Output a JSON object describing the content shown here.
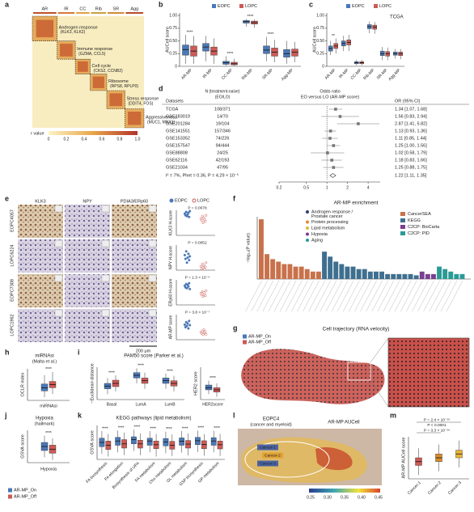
{
  "panel_labels": [
    "a",
    "b",
    "c",
    "d",
    "e",
    "f",
    "g",
    "h",
    "i",
    "j",
    "k",
    "l",
    "m"
  ],
  "a": {
    "groups": [
      "AR",
      "IR",
      "CC",
      "Rib",
      "SR",
      "Agg"
    ],
    "modules": [
      {
        "name": "Androgen response",
        "genes": "(KLK3, KLK2)"
      },
      {
        "name": "Immune response",
        "genes": "(GZMA, CCL5)"
      },
      {
        "name": "Cell cycle",
        "genes": "(CKS2, CCNB2)"
      },
      {
        "name": "Ribosome",
        "genes": "(RPS8, RPLP0)"
      },
      {
        "name": "Stress response",
        "genes": "(DDIT4, FOS)"
      },
      {
        "name": "Aggressiveness",
        "genes": "(MUC1, MNX1)"
      }
    ],
    "legend_title": "r value",
    "legend_ticks": [
      "0",
      "0.2",
      "0.4",
      "0.6",
      "0.8",
      "1.0"
    ]
  },
  "b": {
    "y_label": "AUCell score",
    "ylim": [
      0,
      1.05
    ],
    "yticks": [
      0,
      {
        "value": 0.25,
        "label": "0.25"
      },
      {
        "value": 0.5,
        "label": "0.50"
      },
      {
        "value": 0.75,
        "label": "0.75"
      },
      {
        "value": 1,
        "label": "1.00"
      }
    ],
    "categories": [
      "AR-MP",
      "IR-MP",
      "CC-MP",
      "Rib-MP",
      "SR-MP",
      "Agg-MP"
    ],
    "significance": [
      "****",
      null,
      "****",
      "****",
      "****",
      null
    ],
    "series": [
      {
        "name": "EOPC",
        "color": "#4a78b8",
        "boxes": [
          [
            0.05,
            0.22,
            0.33,
            0.42,
            0.62
          ],
          [
            0.1,
            0.3,
            0.38,
            0.45,
            0.6
          ],
          [
            0.01,
            0.04,
            0.07,
            0.1,
            0.2
          ],
          [
            0.78,
            0.85,
            0.88,
            0.9,
            0.93
          ],
          [
            0.1,
            0.25,
            0.32,
            0.4,
            0.58
          ],
          [
            0.05,
            0.18,
            0.25,
            0.33,
            0.5
          ]
        ]
      },
      {
        "name": "LOPC",
        "color": "#cc5a55",
        "boxes": [
          [
            0.05,
            0.2,
            0.3,
            0.4,
            0.6
          ],
          [
            0.05,
            0.22,
            0.3,
            0.38,
            0.55
          ],
          [
            0.01,
            0.03,
            0.05,
            0.08,
            0.15
          ],
          [
            0.76,
            0.83,
            0.86,
            0.89,
            0.92
          ],
          [
            0.08,
            0.2,
            0.28,
            0.36,
            0.52
          ],
          [
            0.08,
            0.2,
            0.28,
            0.34,
            0.48
          ]
        ]
      }
    ]
  },
  "c": {
    "title": "TCGA",
    "y_label": "AUCell score",
    "ylim": [
      0,
      1.05
    ],
    "yticks": [
      0,
      {
        "value": 0.25,
        "label": "0.25"
      },
      {
        "value": 0.5,
        "label": "0.50"
      },
      {
        "value": 0.75,
        "label": "0.75"
      },
      {
        "value": 1,
        "label": "1.00"
      }
    ],
    "categories": [
      "AR-MP",
      "IR-MP",
      "CC-MP",
      "Rib-MP",
      "SR-MP",
      "Agg-MP"
    ],
    "significance": [
      "**",
      null,
      null,
      null,
      null,
      null
    ],
    "series": [
      {
        "name": "EOPC",
        "color": "#4a78b8",
        "boxes": [
          [
            0.22,
            0.3,
            0.35,
            0.4,
            0.5
          ],
          [
            0.3,
            0.4,
            0.45,
            0.5,
            0.6
          ],
          [
            0.02,
            0.05,
            0.07,
            0.09,
            0.13
          ],
          [
            0.65,
            0.74,
            0.78,
            0.82,
            0.88
          ],
          [
            0.12,
            0.21,
            0.25,
            0.3,
            0.38
          ],
          [
            0.15,
            0.22,
            0.25,
            0.28,
            0.34
          ]
        ]
      },
      {
        "name": "LOPC",
        "color": "#cc5a55",
        "boxes": [
          [
            0.25,
            0.35,
            0.4,
            0.45,
            0.55
          ],
          [
            0.3,
            0.42,
            0.47,
            0.52,
            0.62
          ],
          [
            0.02,
            0.05,
            0.07,
            0.09,
            0.13
          ],
          [
            0.64,
            0.73,
            0.77,
            0.81,
            0.87
          ],
          [
            0.12,
            0.2,
            0.25,
            0.29,
            0.37
          ],
          [
            0.14,
            0.21,
            0.25,
            0.28,
            0.34
          ]
        ]
      }
    ]
  },
  "d": {
    "n_header": [
      "N (treatment-naive)",
      "(EO/LO)"
    ],
    "or_header": [
      "Odds ratio",
      "EO versus LO (AR-MP score)"
    ],
    "dataset_header": "Datasets",
    "ci_header": "OR (95% CI)",
    "xlim": [
      0.2,
      6
    ],
    "xticks": [
      0.2,
      0.5,
      1,
      2,
      4
    ],
    "rows": [
      {
        "dataset": "TCGA",
        "n": "108/371",
        "ci_text": "1.34 [1.07, 1.68]",
        "or": 1.34,
        "lo": 1.07,
        "hi": 1.68
      },
      {
        "dataset": "GSE183019",
        "n": "14/70",
        "ci_text": "1.56 [0.83, 2.94]",
        "or": 1.56,
        "lo": 0.83,
        "hi": 2.94
      },
      {
        "dataset": "GSE201284",
        "n": "19/104",
        "ci_text": "2.87 [1.41, 5.82]",
        "or": 2.87,
        "lo": 1.41,
        "hi": 5.82
      },
      {
        "dataset": "GSE141551",
        "n": "157/346",
        "ci_text": "1.13 [0.93, 1.36]",
        "or": 1.13,
        "lo": 0.93,
        "hi": 1.36
      },
      {
        "dataset": "GSE153352",
        "n": "74/226",
        "ci_text": "1.11 [0.85, 1.44]",
        "or": 1.11,
        "lo": 0.85,
        "hi": 1.44
      },
      {
        "dataset": "GSE157547",
        "n": "94/444",
        "ci_text": "1.25 [1.00, 1.56]",
        "or": 1.25,
        "lo": 1.0,
        "hi": 1.56
      },
      {
        "dataset": "GSE88808",
        "n": "24/25",
        "ci_text": "1.02 [0.58, 1.79]",
        "or": 1.02,
        "lo": 0.58,
        "hi": 1.79
      },
      {
        "dataset": "GSE62116",
        "n": "42/193",
        "ci_text": "1.18 [0.83, 1.66]",
        "or": 1.18,
        "lo": 0.83,
        "hi": 1.66
      },
      {
        "dataset": "GSE21034",
        "n": "47/95",
        "ci_text": "1.25 [0.88, 1.75]",
        "or": 1.25,
        "lo": 0.88,
        "hi": 1.75
      }
    ],
    "summary": {
      "stats": "I² = 7%, Phet = 0.36, P = 4.29 × 10⁻⁵",
      "ci_text": "1.22 [1.11, 1.35]",
      "or": 1.22,
      "lo": 1.11,
      "hi": 1.35
    }
  },
  "e": {
    "columns": [
      "KLK3",
      "NPY",
      "PDIA3/ERp60"
    ],
    "rows": [
      "EOPC4057",
      "LOPC6224",
      "EOPC7308",
      "LOPC1962"
    ],
    "legend": [
      {
        "name": "EOPC",
        "color": "#4a78b8"
      },
      {
        "name": "LOPC",
        "color": "#cc5a55"
      }
    ],
    "scale_bar": "200 μm",
    "plots": [
      {
        "y_label": "KLK3 H-score",
        "p": "P = 0.0078",
        "ylim": [
          0,
          300
        ],
        "eopc": [
          260,
          240,
          280,
          230,
          250,
          270,
          220,
          290
        ],
        "lopc": [
          200,
          180,
          230,
          150,
          210,
          190,
          170,
          240
        ]
      },
      {
        "y_label": "NPY H-score",
        "p": "P = 0.0052",
        "ylim": [
          0,
          200
        ],
        "eopc": [
          120,
          90,
          150,
          60,
          100,
          130,
          80,
          110
        ],
        "lopc": [
          30,
          10,
          50,
          20,
          40,
          5,
          25,
          60
        ]
      },
      {
        "y_label": "ERp60 H-score",
        "p": "P = 1.3 × 10⁻⁴",
        "ylim": [
          0,
          300
        ],
        "eopc": [
          230,
          210,
          250,
          200,
          240,
          220,
          260,
          190
        ],
        "lopc": [
          140,
          120,
          160,
          100,
          150,
          130,
          110,
          170
        ]
      },
      {
        "y_label": "AR-MP score",
        "p": "P = 3.8 × 10⁻⁷",
        "ylim": [
          0,
          1
        ],
        "eopc": [
          0.6,
          0.5,
          0.7,
          0.55,
          0.65,
          0.45,
          0.75,
          0.58
        ],
        "lopc": [
          0.3,
          0.25,
          0.35,
          0.2,
          0.4,
          0.28,
          0.32,
          0.22
        ]
      }
    ]
  },
  "f": {
    "title": "AR-MP enrichment",
    "y_label": "−log₁₀(P value)",
    "ylim": [
      0,
      25
    ],
    "themes": [
      {
        "name": "Androgen response /",
        "name2": "Prostate cancer",
        "color": "#2c3e70"
      },
      {
        "name": "Protein processing",
        "color": "#e08a3a"
      },
      {
        "name": "Lipid metabolism",
        "color": "#e0b83a"
      },
      {
        "name": "Hypoxia",
        "color": "#7a3f8f"
      },
      {
        "name": "Aging",
        "color": "#2a9a95"
      }
    ],
    "series": [
      {
        "name": "CancerSEA",
        "color": "#c8714a",
        "values": [
          24,
          10,
          8,
          7,
          6,
          6,
          5,
          5,
          4,
          3,
          3
        ]
      },
      {
        "name": "KEGG",
        "color": "#3f6f8f",
        "values": [
          11,
          9,
          7,
          6,
          5,
          5,
          4,
          4,
          3,
          3,
          3,
          2,
          2,
          2,
          2,
          2,
          1.5
        ]
      },
      {
        "name": "C2CP: BioCarta",
        "color": "#7a3f8f",
        "values": [
          3,
          2,
          2
        ]
      },
      {
        "name": "C2CP: PID",
        "color": "#2a9a95",
        "values": [
          5,
          4,
          3,
          2,
          2
        ]
      }
    ]
  },
  "g": {
    "title": "Cell trajectory (RNA velocity)",
    "legend": [
      {
        "name": "AR-MP_On",
        "color": "#4a78b8"
      },
      {
        "name": "AR-MP_Off",
        "color": "#cc5a55"
      }
    ]
  },
  "h": {
    "title": "miRNAsi",
    "subtitle": "(Malta et al.)",
    "y_label": "OCLR index",
    "x_label": "miRNAsi",
    "ylim": [
      0.1,
      0.6
    ],
    "significance": [
      "****"
    ],
    "series": [
      {
        "name": "AR-MP_On",
        "color": "#4a78b8",
        "boxes": [
          [
            0.15,
            0.25,
            0.3,
            0.36,
            0.5
          ]
        ]
      },
      {
        "name": "AR-MP_Off",
        "color": "#cc5a55",
        "boxes": [
          [
            0.2,
            0.3,
            0.35,
            0.4,
            0.55
          ]
        ]
      }
    ]
  },
  "i": {
    "title": "PAM50 score (Parker et al.)",
    "y_label": "−Euclidean distance",
    "ylim": [
      -12,
      -6
    ],
    "categories": [
      "Basal",
      "LumA",
      "LumB"
    ],
    "significance": [
      "****",
      "****",
      "****"
    ],
    "series": [
      {
        "name": "AR-MP_On",
        "color": "#4a78b8",
        "boxes": [
          [
            -11,
            -10,
            -9.5,
            -9,
            -8
          ],
          [
            -9,
            -8,
            -7.5,
            -7,
            -6.2
          ],
          [
            -10,
            -9,
            -8.5,
            -8,
            -7.2
          ]
        ]
      },
      {
        "name": "AR-MP_Off",
        "color": "#cc5a55",
        "boxes": [
          [
            -10.5,
            -9.6,
            -9,
            -8.4,
            -7.5
          ],
          [
            -10,
            -9,
            -8.5,
            -8,
            -7
          ],
          [
            -10.5,
            -9.5,
            -9,
            -8.5,
            -7.6
          ]
        ]
      }
    ],
    "her2": {
      "y_label": "HER2 score",
      "ylim": [
        -12,
        -6
      ],
      "categories": [
        "HER2score"
      ],
      "significance": [
        "****"
      ],
      "series": [
        {
          "name": "AR-MP_On",
          "color": "#4a78b8",
          "boxes": [
            [
              -11,
              -10.2,
              -9.8,
              -9.3,
              -8.5
            ]
          ]
        },
        {
          "name": "AR-MP_Off",
          "color": "#cc5a55",
          "boxes": [
            [
              -11.5,
              -10.6,
              -10.2,
              -9.8,
              -9
            ]
          ]
        }
      ]
    }
  },
  "j": {
    "title": "Hypoxia",
    "subtitle": "(hallmark)",
    "y_label": "GSVA score",
    "x_label": "Hypoxia",
    "ylim": [
      -0.6,
      0.6
    ],
    "significance": [
      "****"
    ],
    "series": [
      {
        "name": "AR-MP_On",
        "color": "#4a78b8",
        "boxes": [
          [
            -0.4,
            -0.15,
            0,
            0.15,
            0.4
          ]
        ]
      },
      {
        "name": "AR-MP_Off",
        "color": "#cc5a55",
        "boxes": [
          [
            -0.5,
            -0.25,
            -0.1,
            0.05,
            0.3
          ]
        ]
      }
    ]
  },
  "k": {
    "title": "KEGG pathways (lipid metabolism)",
    "y_label": "GSVA score",
    "ylim": [
      -0.6,
      0.6
    ],
    "categories": [
      "FA biosynthesis",
      "FA elongation",
      "Biosynthesis of UFA",
      "FA metabolism",
      "Cho metabolism",
      "GL metabolism",
      "GSP biosynthesis",
      "GP metabolism"
    ],
    "significance": [
      "****",
      "****",
      "****",
      "****",
      "****",
      "****",
      "****",
      "****"
    ],
    "series": [
      {
        "name": "AR-MP_On",
        "color": "#4a78b8",
        "boxes": [
          [
            -0.4,
            -0.15,
            0,
            0.15,
            0.4
          ],
          [
            -0.35,
            -0.1,
            0.05,
            0.18,
            0.42
          ],
          [
            -0.3,
            -0.05,
            0.1,
            0.2,
            0.45
          ],
          [
            -0.35,
            -0.1,
            0.05,
            0.15,
            0.4
          ],
          [
            -0.38,
            -0.12,
            0.02,
            0.14,
            0.38
          ],
          [
            -0.36,
            -0.1,
            0.04,
            0.16,
            0.4
          ],
          [
            -0.34,
            -0.08,
            0.06,
            0.18,
            0.42
          ],
          [
            -0.35,
            -0.1,
            0.05,
            0.17,
            0.41
          ]
        ]
      },
      {
        "name": "AR-MP_Off",
        "color": "#cc5a55",
        "boxes": [
          [
            -0.5,
            -0.25,
            -0.1,
            0.05,
            0.3
          ],
          [
            -0.45,
            -0.2,
            -0.05,
            0.1,
            0.35
          ],
          [
            -0.45,
            -0.2,
            -0.05,
            0.08,
            0.32
          ],
          [
            -0.5,
            -0.22,
            -0.08,
            0.05,
            0.3
          ],
          [
            -0.48,
            -0.24,
            -0.1,
            0.04,
            0.28
          ],
          [
            -0.46,
            -0.2,
            -0.06,
            0.07,
            0.32
          ],
          [
            -0.47,
            -0.22,
            -0.07,
            0.06,
            0.3
          ],
          [
            -0.48,
            -0.23,
            -0.08,
            0.05,
            0.3
          ]
        ]
      }
    ]
  },
  "legend_hk": [
    {
      "name": "AR-MP_On",
      "color": "#4a78b8"
    },
    {
      "name": "AR-MP_Off",
      "color": "#cc5a55"
    }
  ],
  "l": {
    "title": "EOPC4",
    "subtitle": "(cancer and myeloid)",
    "title2": "AR-MP AUCell",
    "clusters": [
      "Cancer-1",
      "Cancer-2",
      "Cancer-3"
    ],
    "colorbar_ticks": [
      "0.25",
      "0.30",
      "0.35",
      "0.40",
      "0.45"
    ]
  },
  "m": {
    "y_label": "AR-MP AUCell score",
    "ylim": [
      0.28,
      0.5
    ],
    "categories": [
      "Cancer-1",
      "Cancer-2",
      "Cancer-3"
    ],
    "p_labels": [
      "P = 2.4 × 10⁻¹⁶",
      "P < 0.0001",
      "P = 3.3 × 10⁻¹⁶"
    ],
    "box_colors": [
      "#cc5a55",
      "#d88a2b",
      "#e8b33a"
    ],
    "series": [
      {
        "boxes": [
          [
            0.3,
            0.35,
            0.37,
            0.39,
            0.44
          ],
          [
            0.32,
            0.37,
            0.39,
            0.41,
            0.46
          ],
          [
            0.34,
            0.39,
            0.41,
            0.43,
            0.48
          ]
        ]
      }
    ]
  }
}
